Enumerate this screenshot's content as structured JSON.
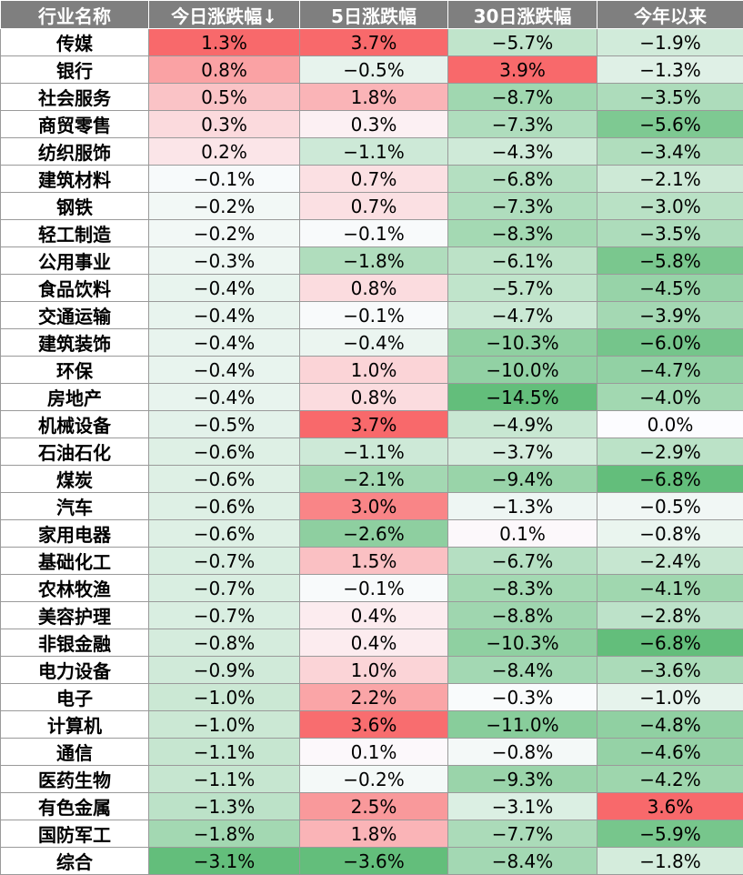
{
  "chart_data": {
    "type": "table",
    "columns": [
      "行业名称",
      "今日涨跌幅↓",
      "5日涨跌幅",
      "30日涨跌幅",
      "今年以来"
    ],
    "rows": [
      {
        "name": "传媒",
        "values": [
          1.3,
          3.7,
          -5.7,
          -1.9
        ]
      },
      {
        "name": "银行",
        "values": [
          0.8,
          -0.5,
          3.9,
          -1.3
        ]
      },
      {
        "name": "社会服务",
        "values": [
          0.5,
          1.8,
          -8.7,
          -3.5
        ]
      },
      {
        "name": "商贸零售",
        "values": [
          0.3,
          0.3,
          -7.3,
          -5.6
        ]
      },
      {
        "name": "纺织服饰",
        "values": [
          0.2,
          -1.1,
          -4.3,
          -3.4
        ]
      },
      {
        "name": "建筑材料",
        "values": [
          -0.1,
          0.7,
          -6.8,
          -2.1
        ]
      },
      {
        "name": "钢铁",
        "values": [
          -0.2,
          0.7,
          -7.3,
          -3.0
        ]
      },
      {
        "name": "轻工制造",
        "values": [
          -0.2,
          -0.1,
          -8.3,
          -3.5
        ]
      },
      {
        "name": "公用事业",
        "values": [
          -0.3,
          -1.8,
          -6.1,
          -5.8
        ]
      },
      {
        "name": "食品饮料",
        "values": [
          -0.4,
          0.8,
          -5.7,
          -4.5
        ]
      },
      {
        "name": "交通运输",
        "values": [
          -0.4,
          -0.1,
          -4.7,
          -3.9
        ]
      },
      {
        "name": "建筑装饰",
        "values": [
          -0.4,
          -0.4,
          -10.3,
          -6.0
        ]
      },
      {
        "name": "环保",
        "values": [
          -0.4,
          1.0,
          -10.0,
          -4.7
        ]
      },
      {
        "name": "房地产",
        "values": [
          -0.4,
          0.8,
          -14.5,
          -4.0
        ]
      },
      {
        "name": "机械设备",
        "values": [
          -0.5,
          3.7,
          -4.9,
          0.0
        ]
      },
      {
        "name": "石油石化",
        "values": [
          -0.6,
          -1.1,
          -3.7,
          -2.9
        ]
      },
      {
        "name": "煤炭",
        "values": [
          -0.6,
          -2.1,
          -9.4,
          -6.8
        ]
      },
      {
        "name": "汽车",
        "values": [
          -0.6,
          3.0,
          -1.3,
          -0.5
        ]
      },
      {
        "name": "家用电器",
        "values": [
          -0.6,
          -2.6,
          0.1,
          -0.8
        ]
      },
      {
        "name": "基础化工",
        "values": [
          -0.7,
          1.5,
          -6.7,
          -2.4
        ]
      },
      {
        "name": "农林牧渔",
        "values": [
          -0.7,
          -0.1,
          -8.3,
          -4.1
        ]
      },
      {
        "name": "美容护理",
        "values": [
          -0.7,
          0.4,
          -8.8,
          -2.8
        ]
      },
      {
        "name": "非银金融",
        "values": [
          -0.8,
          0.4,
          -10.3,
          -6.8
        ]
      },
      {
        "name": "电力设备",
        "values": [
          -0.9,
          1.0,
          -8.4,
          -3.6
        ]
      },
      {
        "name": "电子",
        "values": [
          -1.0,
          2.2,
          -0.3,
          -1.0
        ]
      },
      {
        "name": "计算机",
        "values": [
          -1.0,
          3.6,
          -11.0,
          -4.8
        ]
      },
      {
        "name": "通信",
        "values": [
          -1.1,
          0.1,
          -0.8,
          -4.6
        ]
      },
      {
        "name": "医药生物",
        "values": [
          -1.1,
          -0.2,
          -9.3,
          -4.2
        ]
      },
      {
        "name": "有色金属",
        "values": [
          -1.3,
          2.5,
          -3.1,
          3.6
        ]
      },
      {
        "name": "国防军工",
        "values": [
          -1.8,
          1.8,
          -7.7,
          -5.9
        ]
      },
      {
        "name": "综合",
        "values": [
          -3.1,
          -3.6,
          -8.4,
          -1.8
        ]
      }
    ],
    "colors": {
      "header_bg": "#7f7f7f",
      "positive_max": "#f8696b",
      "negative_max": "#63be7b",
      "neutral": "#fcfcff"
    }
  }
}
